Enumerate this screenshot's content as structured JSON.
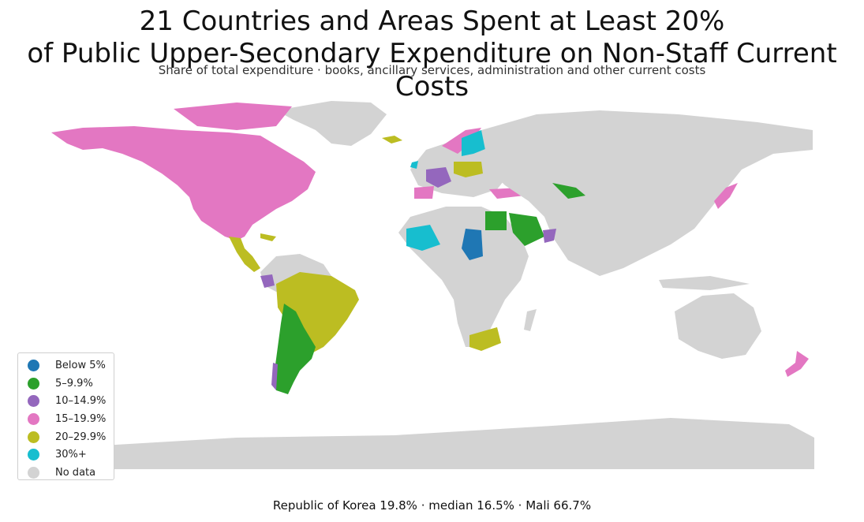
{
  "title_line1": "21 Countries and Areas Spent at Least 20%",
  "title_line2": "of Public Upper-Secondary Expenditure on Non-Staff Current Costs",
  "subtitle": "Share of total expenditure · books, ancillary services, administration and other current costs",
  "footer": "Republic of Korea 19.8% · median 16.5% · Mali 66.7%",
  "legend": [
    {
      "label": "Below 5%",
      "color": "#1f77b4"
    },
    {
      "label": "5–9.9%",
      "color": "#2ca02c"
    },
    {
      "label": "10–14.9%",
      "color": "#9467bd"
    },
    {
      "label": "15–19.9%",
      "color": "#e377c2"
    },
    {
      "label": "20–29.9%",
      "color": "#bcbd22"
    },
    {
      "label": "30%+",
      "color": "#17becf"
    },
    {
      "label": "No data",
      "color": "#d3d3d3"
    }
  ],
  "map": {
    "background_land_color": "#d3d3d3",
    "region_categories": {
      "north-america": "15–19.9%",
      "greenland": "No data",
      "central-america": "20–29.9%",
      "brazil": "20–29.9%",
      "chile-argentina": "5–9.9%",
      "colombia": "10–14.9%",
      "russia-asia": "No data",
      "africa": "No data",
      "australia": "No data",
      "antarctica": "No data",
      "mali": "30%+",
      "chad": "Below 5%",
      "egypt": "5–9.9%",
      "saudi-arabia": "5–9.9%",
      "oman": "10–14.9%",
      "south-africa": "20–29.9%",
      "iceland": "20–29.9%",
      "scandinavia": "15–19.9%",
      "finland": "30%+",
      "france": "10–14.9%",
      "spain": "15–19.9%",
      "turkey": "15–19.9%",
      "japan": "15–19.9%",
      "new-zealand": "15–19.9%",
      "kazakhstan-uzbek": "5–9.9%",
      "central-europe": "20–29.9%"
    }
  }
}
